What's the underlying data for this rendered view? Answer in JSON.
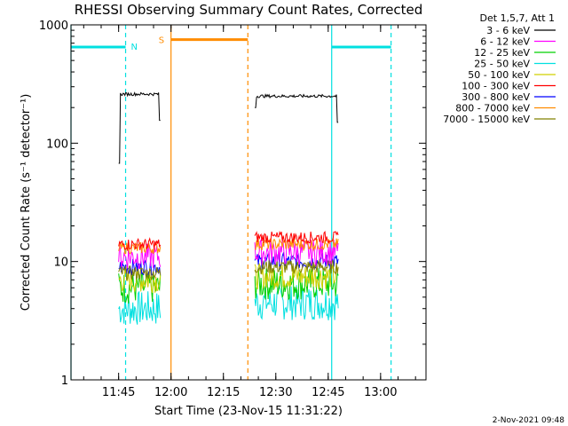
{
  "chart_data": {
    "type": "line",
    "title": "RHESSI Observing Summary Count Rates, Corrected",
    "xlabel": "Start Time (23-Nov-15 11:31:22)",
    "ylabel": "Corrected Count Rate (s⁻¹ detector⁻¹)",
    "yscale": "log",
    "xlim": [
      "11:31:22",
      "13:13:00"
    ],
    "ylim": [
      1,
      1000
    ],
    "x_ticks": [
      "11:45",
      "12:00",
      "12:15",
      "12:30",
      "12:45",
      "13:00"
    ],
    "y_ticks": [
      "1",
      "10",
      "100",
      "1000"
    ],
    "legend_title": "Det 1,5,7, Att 1",
    "legend_position": "outside-right",
    "series": [
      {
        "name": "3 - 6 keV",
        "color": "#000000",
        "segments": [
          {
            "start": "11:45",
            "end": "11:57",
            "value": 260
          },
          {
            "start": "12:24",
            "end": "12:48",
            "value": 250
          }
        ]
      },
      {
        "name": "6 - 12 keV",
        "color": "#ff00ff",
        "segments": [
          {
            "start": "11:45",
            "end": "11:57",
            "value": 11
          },
          {
            "start": "12:24",
            "end": "12:48",
            "value": 12
          }
        ]
      },
      {
        "name": "12 - 25 keV",
        "color": "#00d000",
        "segments": [
          {
            "start": "11:45",
            "end": "11:57",
            "value": 6
          },
          {
            "start": "12:24",
            "end": "12:48",
            "value": 6.5
          }
        ]
      },
      {
        "name": "25 - 50 keV",
        "color": "#00e0e0",
        "segments": [
          {
            "start": "11:45",
            "end": "11:57",
            "value": 4
          },
          {
            "start": "12:24",
            "end": "12:48",
            "value": 4.5
          }
        ]
      },
      {
        "name": "50 - 100 keV",
        "color": "#d0d000",
        "segments": [
          {
            "start": "11:45",
            "end": "11:57",
            "value": 7
          },
          {
            "start": "12:24",
            "end": "12:48",
            "value": 7.5
          }
        ]
      },
      {
        "name": "100 - 300 keV",
        "color": "#ff0000",
        "segments": [
          {
            "start": "11:45",
            "end": "11:57",
            "value": 14
          },
          {
            "start": "12:24",
            "end": "12:48",
            "value": 16
          }
        ]
      },
      {
        "name": "300 - 800 keV",
        "color": "#0000ff",
        "segments": [
          {
            "start": "11:45",
            "end": "11:57",
            "value": 9
          },
          {
            "start": "12:24",
            "end": "12:48",
            "value": 10
          }
        ]
      },
      {
        "name": "800 - 7000 keV",
        "color": "#ff8c00",
        "segments": [
          {
            "start": "11:45",
            "end": "11:57",
            "value": 13
          },
          {
            "start": "12:24",
            "end": "12:48",
            "value": 14
          }
        ]
      },
      {
        "name": "7000 - 15000 keV",
        "color": "#808000",
        "segments": [
          {
            "start": "11:45",
            "end": "11:57",
            "value": 8
          },
          {
            "start": "12:24",
            "end": "12:48",
            "value": 9
          }
        ]
      }
    ],
    "night_bars": [
      {
        "label": "N",
        "start": "11:31:22",
        "end": "11:47",
        "color": "#00e0e0"
      },
      {
        "label": "",
        "start": "12:46",
        "end": "13:03",
        "color": "#00e0e0"
      }
    ],
    "saa_bars": [
      {
        "label": "S",
        "start": "12:00",
        "end": "12:22",
        "color": "#ff8c00"
      }
    ],
    "vertical_lines": [
      {
        "time": "11:31:22",
        "color": "#00e0e0",
        "style": "solid"
      },
      {
        "time": "11:47",
        "color": "#00e0e0",
        "style": "dashed"
      },
      {
        "time": "12:00",
        "color": "#ff8c00",
        "style": "solid"
      },
      {
        "time": "12:22",
        "color": "#ff8c00",
        "style": "dashed"
      },
      {
        "time": "12:46",
        "color": "#00e0e0",
        "style": "solid"
      },
      {
        "time": "13:03",
        "color": "#00e0e0",
        "style": "dashed"
      }
    ],
    "bar_level": 650,
    "saa_level": 750,
    "grid": false
  },
  "footer": {
    "timestamp": "2-Nov-2021 09:48"
  }
}
